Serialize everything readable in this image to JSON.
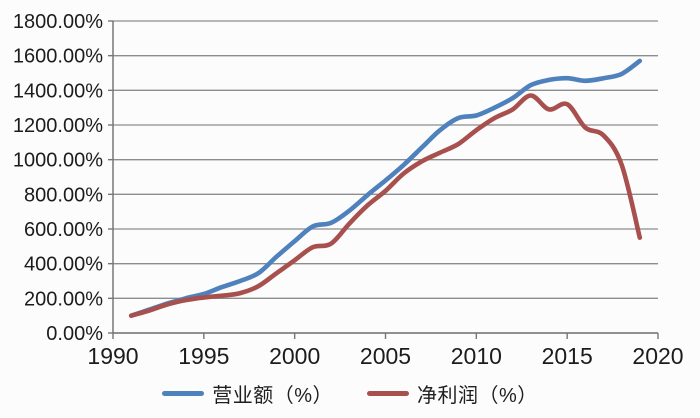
{
  "chart_data": {
    "type": "line",
    "title": "",
    "xlabel": "",
    "ylabel": "",
    "grid": true,
    "legend_position": "bottom",
    "xlim": [
      1990,
      2020
    ],
    "ylim": [
      0,
      1800
    ],
    "x_tick_values": [
      1990,
      1995,
      2000,
      2005,
      2010,
      2015,
      2020
    ],
    "x_tick_labels": [
      "1990",
      "1995",
      "2000",
      "2005",
      "2010",
      "2015",
      "2020"
    ],
    "y_tick_values": [
      0,
      200,
      400,
      600,
      800,
      1000,
      1200,
      1400,
      1600,
      1800
    ],
    "y_tick_labels": [
      "0.00%",
      "200.00%",
      "400.00%",
      "600.00%",
      "800.00%",
      "1000.00%",
      "1200.00%",
      "1400.00%",
      "1600.00%",
      "1800.00%"
    ],
    "x": [
      1991,
      1992,
      1993,
      1994,
      1995,
      1996,
      1997,
      1998,
      1999,
      2000,
      2001,
      2002,
      2003,
      2004,
      2005,
      2006,
      2007,
      2008,
      2009,
      2010,
      2011,
      2012,
      2013,
      2014,
      2015,
      2016,
      2017,
      2018,
      2019
    ],
    "series": [
      {
        "name": "营业额（%）",
        "color": "#4f81bd",
        "values": [
          100,
          135,
          170,
          200,
          225,
          265,
          300,
          345,
          440,
          530,
          615,
          635,
          705,
          795,
          880,
          970,
          1070,
          1170,
          1240,
          1255,
          1300,
          1355,
          1430,
          1460,
          1470,
          1455,
          1470,
          1495,
          1570
        ]
      },
      {
        "name": "净利润（%）",
        "color": "#a8504d",
        "values": [
          100,
          130,
          165,
          190,
          205,
          215,
          230,
          270,
          345,
          420,
          495,
          515,
          630,
          735,
          820,
          920,
          990,
          1040,
          1090,
          1170,
          1240,
          1290,
          1370,
          1290,
          1320,
          1185,
          1140,
          970,
          550
        ]
      }
    ]
  },
  "legend": {
    "series1_label": "营业额（%）",
    "series2_label": "净利润（%）"
  },
  "colors": {
    "series1": "#4f81bd",
    "series2": "#a8504d",
    "gridline": "#8d8d8d",
    "axis": "#767676",
    "tick_text": "#1c1c1c",
    "background": "#fcfcfc"
  }
}
